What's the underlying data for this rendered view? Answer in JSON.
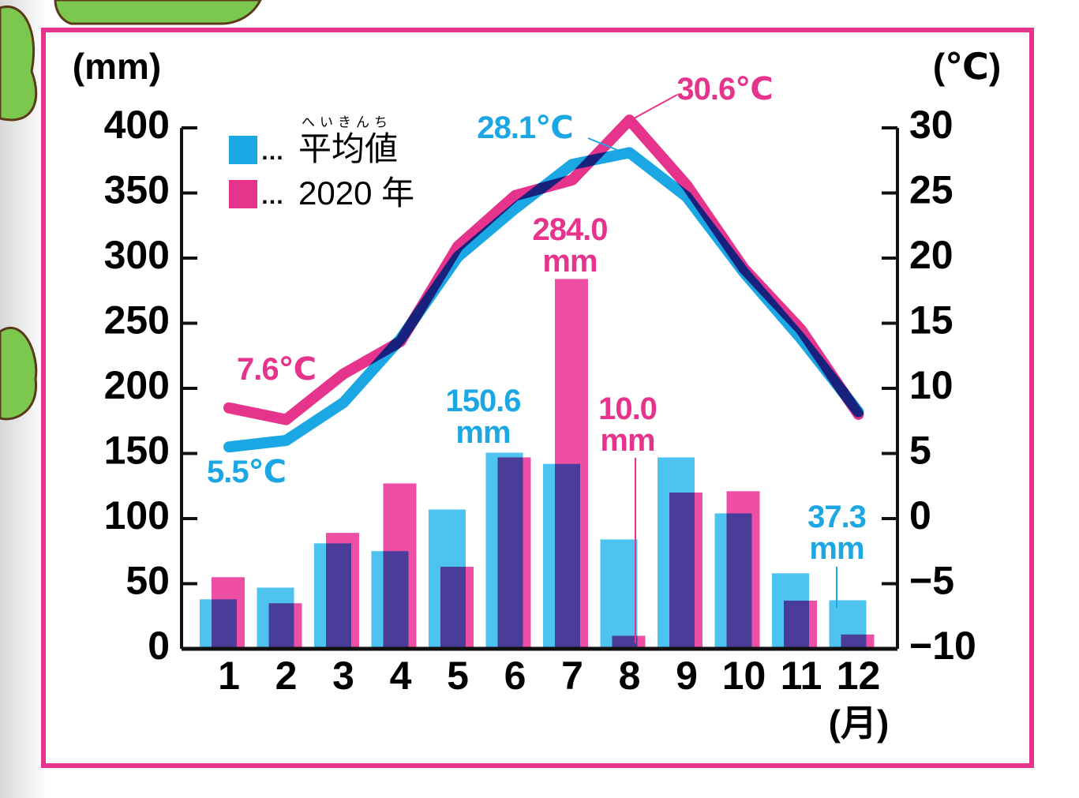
{
  "chart_data": {
    "type": "bar",
    "ylabel": "(mm)",
    "y2label": "(℃)",
    "xlabel": "(月)",
    "categories": [
      "1",
      "2",
      "3",
      "4",
      "5",
      "6",
      "7",
      "8",
      "9",
      "10",
      "11",
      "12"
    ],
    "ylim": [
      0,
      400
    ],
    "yticks": [
      0,
      50,
      100,
      150,
      200,
      250,
      300,
      350,
      400
    ],
    "y2lim": [
      -10,
      30
    ],
    "y2ticks": [
      {
        "value": -10,
        "label": "−10"
      },
      {
        "value": -5,
        "label": "−5"
      },
      0,
      5,
      10,
      15,
      20,
      25,
      30
    ],
    "series": [
      {
        "name": "平均値",
        "name_ruby": "へいきんち",
        "type": "bar",
        "color": "#4fc3ef",
        "values": [
          38,
          47,
          81,
          75,
          107,
          150.6,
          142,
          84,
          147,
          104,
          58,
          37.3
        ],
        "value_labels": [
          null,
          null,
          null,
          null,
          null,
          "150.6\nmm",
          null,
          null,
          null,
          null,
          null,
          "37.3\nmm"
        ]
      },
      {
        "name": "2020 年",
        "type": "bar",
        "color": "#ee4fa4",
        "values": [
          55,
          35,
          89,
          127,
          63,
          147,
          284.0,
          10.0,
          120,
          121,
          37,
          11
        ],
        "value_labels": [
          null,
          null,
          null,
          null,
          null,
          null,
          "284.0\nmm",
          "10.0\nmm",
          null,
          null,
          null,
          null
        ]
      },
      {
        "type": "line",
        "axis": "y2",
        "color": "#1aa7e3",
        "values": [
          5.5,
          6.0,
          8.9,
          13.8,
          20.1,
          23.8,
          27.2,
          28.1,
          24.7,
          18.9,
          13.8,
          8.2
        ],
        "value_labels": [
          "5.5℃",
          null,
          null,
          null,
          null,
          null,
          null,
          "28.1℃",
          null,
          null,
          null,
          null
        ]
      },
      {
        "type": "line",
        "axis": "y2",
        "color": "#e6338c",
        "values": [
          8.5,
          7.6,
          11.1,
          13.6,
          20.9,
          24.8,
          26.0,
          30.6,
          25.6,
          19.2,
          14.5,
          8.0
        ],
        "value_labels": [
          null,
          "7.6℃",
          null,
          null,
          null,
          null,
          null,
          "30.6℃",
          null,
          null,
          null,
          null
        ]
      }
    ]
  }
}
